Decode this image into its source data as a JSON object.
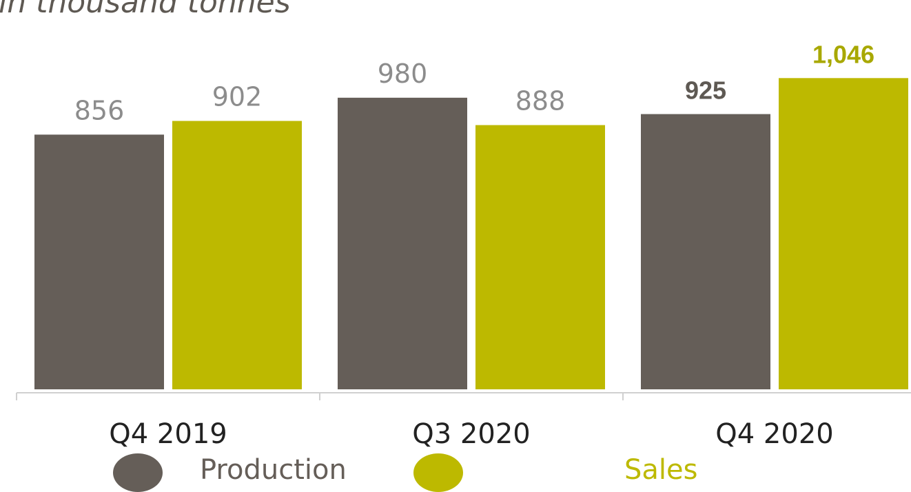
{
  "subtitle": "in thousand tonnes",
  "colors": {
    "production": "#655e58",
    "sales": "#bdb900",
    "label_default": "#8c8c8c",
    "label_production_emph": "#5e5953",
    "label_sales_emph": "#a8a800",
    "axis": "#d0d0d0",
    "category_text": "#222222"
  },
  "chart_data": {
    "type": "bar",
    "categories": [
      "Q4 2019",
      "Q3 2020",
      "Q4 2020"
    ],
    "series": [
      {
        "name": "Production",
        "values": [
          856,
          980,
          925
        ],
        "labels": [
          "856",
          "980",
          "925"
        ]
      },
      {
        "name": "Sales",
        "values": [
          902,
          888,
          1046
        ],
        "labels": [
          "902",
          "888",
          "1,046"
        ]
      }
    ],
    "ylim": [
      0,
      1100
    ],
    "grid": false,
    "legend": "bottom"
  },
  "legend": {
    "items": [
      {
        "label": "Production",
        "icon": "production-dot-icon"
      },
      {
        "label": "Sales",
        "icon": "sales-dot-icon"
      }
    ]
  }
}
